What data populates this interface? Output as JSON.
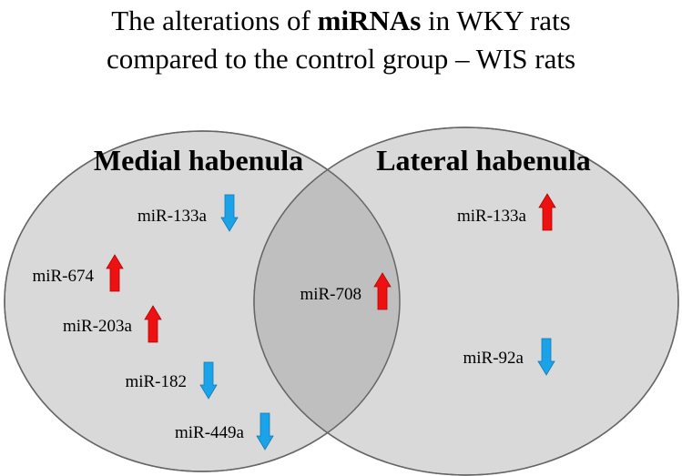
{
  "title": {
    "line1_prefix": "The alterations of ",
    "line1_bold": "miRNAs",
    "line1_suffix": " in WKY rats",
    "line2": "compared to the control group – WIS rats"
  },
  "regions": {
    "left": "Medial habenula",
    "right": "Lateral habenula"
  },
  "colors": {
    "up_arrow": "#ee1111",
    "down_arrow": "#1aa3e8",
    "circle_fill": "#d9d9d9",
    "overlap_fill": "#bfbfbf",
    "outline": "#666666"
  },
  "mirnas": [
    {
      "label": "miR-133a",
      "direction": "down",
      "region": "Medial habenula"
    },
    {
      "label": "miR-674",
      "direction": "up",
      "region": "Medial habenula"
    },
    {
      "label": "miR-203a",
      "direction": "up",
      "region": "Medial habenula"
    },
    {
      "label": "miR-182",
      "direction": "down",
      "region": "Medial habenula"
    },
    {
      "label": "miR-449a",
      "direction": "down",
      "region": "Medial habenula"
    },
    {
      "label": "miR-708",
      "direction": "up",
      "region": "both"
    },
    {
      "label": "miR-133a",
      "direction": "up",
      "region": "Lateral habenula"
    },
    {
      "label": "miR-92a",
      "direction": "down",
      "region": "Lateral habenula"
    }
  ]
}
